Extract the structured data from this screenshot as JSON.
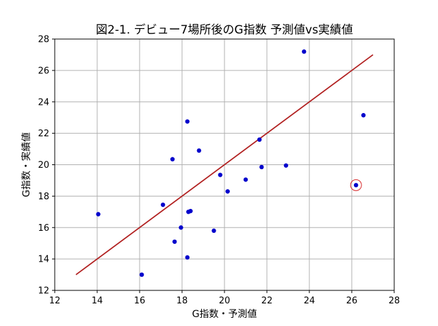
{
  "chart_data": {
    "type": "scatter",
    "title": "図2-1. デビュー7場所後のG指数 予測値vs実績値",
    "xlabel": "G指数・予測値",
    "ylabel": "G指数・実績値",
    "xlim": [
      12,
      28
    ],
    "ylim": [
      12,
      28
    ],
    "xticks": [
      12,
      14,
      16,
      18,
      20,
      22,
      24,
      26,
      28
    ],
    "yticks": [
      12,
      14,
      16,
      18,
      20,
      22,
      24,
      26,
      28
    ],
    "grid": true,
    "colors": {
      "points": "#0000cc",
      "fit_line": "#b22222",
      "highlight": "#d62728",
      "grid": "#b0b0b0"
    },
    "series": [
      {
        "type": "scatter",
        "points": [
          {
            "x": 14.05,
            "y": 16.85
          },
          {
            "x": 16.1,
            "y": 13.0
          },
          {
            "x": 17.1,
            "y": 17.45
          },
          {
            "x": 17.55,
            "y": 20.35
          },
          {
            "x": 17.65,
            "y": 15.1
          },
          {
            "x": 17.95,
            "y": 16.0
          },
          {
            "x": 18.25,
            "y": 22.75
          },
          {
            "x": 18.25,
            "y": 14.1
          },
          {
            "x": 18.3,
            "y": 17.0
          },
          {
            "x": 18.4,
            "y": 17.05
          },
          {
            "x": 18.8,
            "y": 20.9
          },
          {
            "x": 19.5,
            "y": 15.8
          },
          {
            "x": 19.8,
            "y": 19.35
          },
          {
            "x": 20.15,
            "y": 18.3
          },
          {
            "x": 21.0,
            "y": 19.05
          },
          {
            "x": 21.65,
            "y": 21.6
          },
          {
            "x": 21.75,
            "y": 19.85
          },
          {
            "x": 22.9,
            "y": 19.95
          },
          {
            "x": 23.75,
            "y": 27.2
          },
          {
            "x": 26.2,
            "y": 18.7
          },
          {
            "x": 26.55,
            "y": 23.15
          }
        ]
      },
      {
        "type": "line",
        "points": [
          {
            "x": 13.0,
            "y": 13.0
          },
          {
            "x": 27.0,
            "y": 27.0
          }
        ]
      }
    ],
    "highlight": {
      "x": 26.2,
      "y": 18.7
    }
  }
}
